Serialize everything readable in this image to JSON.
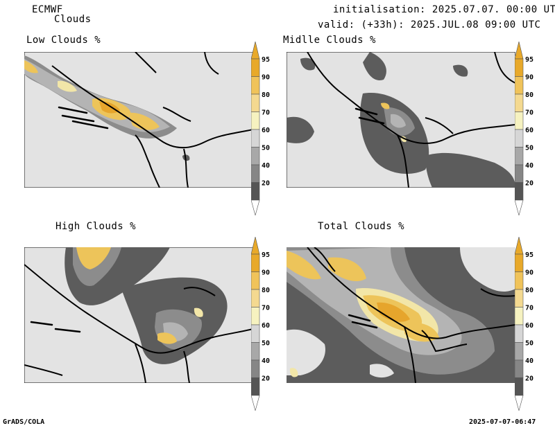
{
  "header": {
    "model": "ECMWF",
    "product": "Clouds",
    "init": "initialisation: 2025.07.07. 00:00 UTC",
    "valid": "valid: (+33h): 2025.JUL.08 09:00 UTC"
  },
  "panels": [
    {
      "title": "Low Clouds %"
    },
    {
      "title": "Midlle Clouds %"
    },
    {
      "title": "High Clouds %"
    },
    {
      "title": "Total Clouds %"
    }
  ],
  "colorbar": {
    "levels": [
      "95",
      "90",
      "80",
      "70",
      "60",
      "50",
      "40",
      "20"
    ],
    "colors": {
      "95": "#e8a92a",
      "90": "#f0c35a",
      "80": "#f4d990",
      "70": "#f6f2c0",
      "60": "#d6d6d6",
      "50": "#a8a8a8",
      "40": "#868686",
      "20": "#555555"
    }
  },
  "map_colors": {
    "background": "#e3e3e3",
    "dark": "#5c5c5c",
    "mid": "#8c8c8c",
    "light": "#b4b4b4",
    "yellow_pale": "#f2e6a8",
    "yellow": "#edc45a",
    "orange": "#e6a52c"
  },
  "footer": {
    "left": "GrADS/COLA",
    "right": "2025-07-07-06:47"
  }
}
